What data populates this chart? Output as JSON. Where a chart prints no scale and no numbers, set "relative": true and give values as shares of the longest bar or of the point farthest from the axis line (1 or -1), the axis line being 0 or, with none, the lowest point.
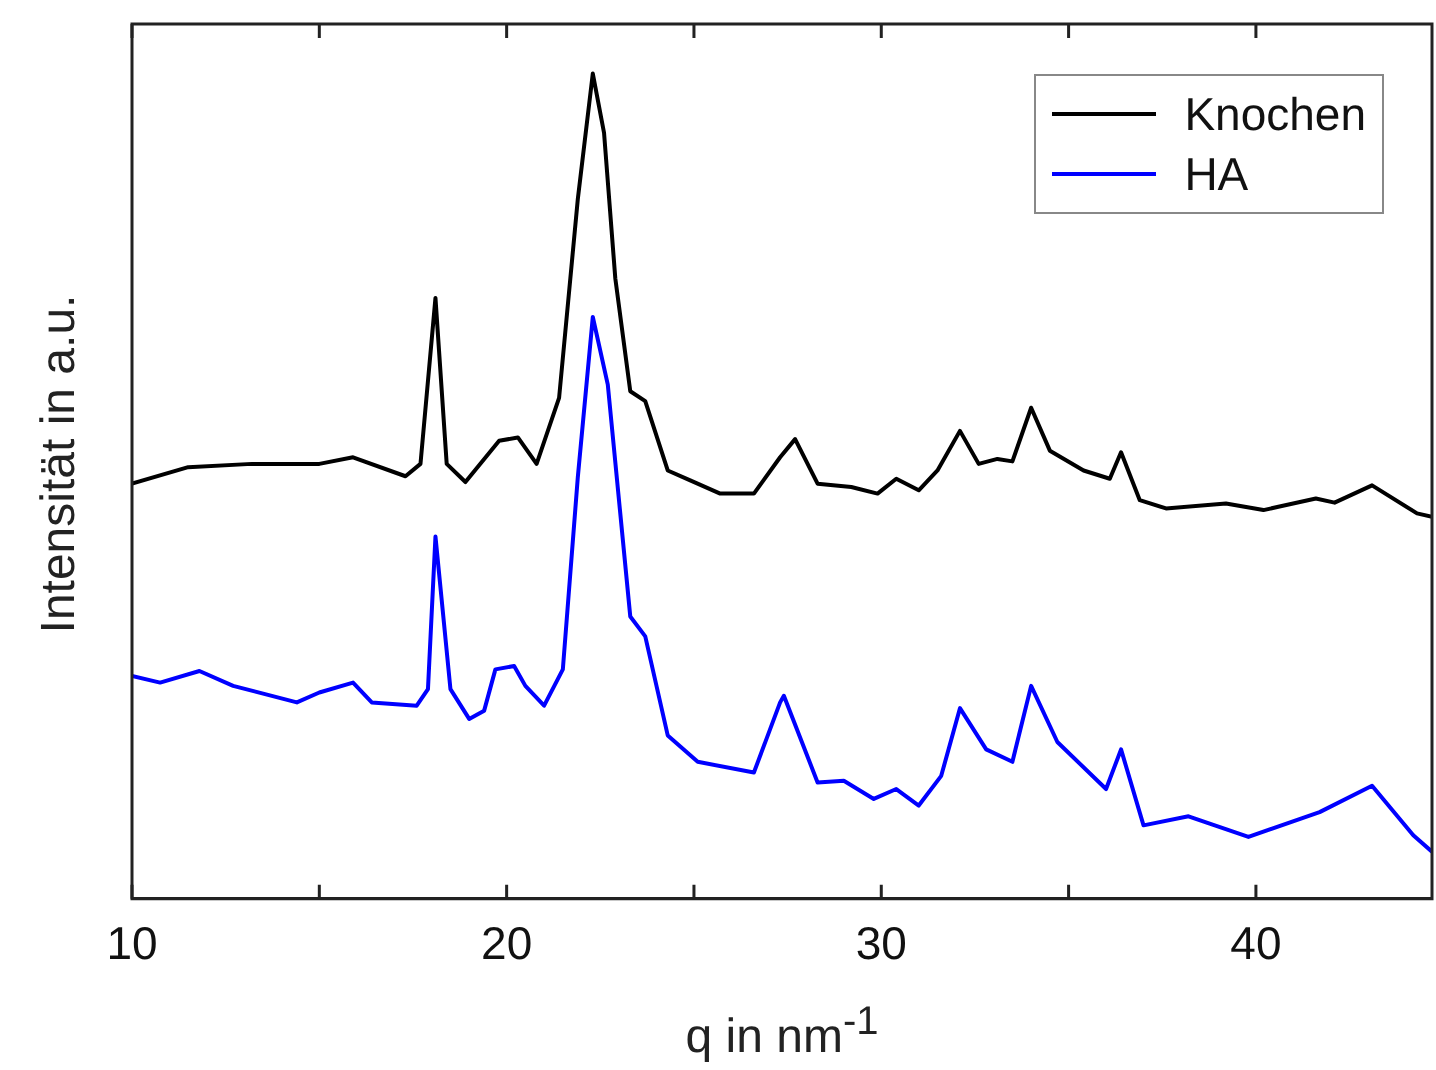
{
  "chart_data": {
    "type": "line",
    "relative": true,
    "xlabel": "q in nm$^{-1}$",
    "ylabel": "Intensität in a.u.",
    "xlim": [
      10,
      44.7
    ],
    "xticks": [
      10,
      {
        "value": 15,
        "label": null
      },
      20,
      {
        "value": 25,
        "label": null
      },
      30,
      {
        "value": 35,
        "label": null
      },
      40
    ],
    "legend": "top right",
    "grid": false,
    "marker": "none",
    "line_style": "solid",
    "series": [
      {
        "name": "Knochen",
        "color": "#000000",
        "x": [
          10.0,
          11.5,
          13.2,
          15.0,
          15.9,
          17.3,
          17.7,
          18.1,
          18.4,
          18.9,
          19.8,
          20.3,
          20.8,
          21.4,
          21.9,
          22.3,
          22.6,
          22.9,
          23.3,
          23.7,
          24.3,
          24.9,
          25.7,
          26.6,
          27.3,
          27.7,
          28.3,
          29.2,
          29.9,
          30.4,
          31.0,
          31.5,
          32.1,
          32.6,
          33.1,
          33.5,
          34.0,
          34.5,
          35.4,
          36.1,
          36.4,
          36.9,
          37.6,
          39.2,
          40.2,
          41.6,
          42.1,
          43.1,
          44.3,
          44.7
        ],
        "values": [
          0.503,
          0.523,
          0.527,
          0.527,
          0.535,
          0.512,
          0.527,
          0.728,
          0.527,
          0.505,
          0.555,
          0.559,
          0.527,
          0.607,
          0.848,
          1.0,
          0.928,
          0.752,
          0.615,
          0.603,
          0.519,
          0.507,
          0.491,
          0.491,
          0.535,
          0.557,
          0.503,
          0.499,
          0.491,
          0.509,
          0.495,
          0.519,
          0.567,
          0.527,
          0.533,
          0.53,
          0.595,
          0.543,
          0.519,
          0.509,
          0.541,
          0.483,
          0.473,
          0.479,
          0.471,
          0.485,
          0.48,
          0.501,
          0.467,
          0.463
        ]
      },
      {
        "name": "HA",
        "color": "#0000ff",
        "x": [
          10.0,
          10.75,
          11.8,
          12.7,
          14.4,
          15.0,
          15.9,
          16.4,
          17.6,
          17.9,
          18.1,
          18.5,
          19.0,
          19.4,
          19.7,
          20.2,
          20.5,
          21.0,
          21.5,
          21.9,
          22.3,
          22.7,
          23.3,
          23.7,
          24.3,
          25.1,
          26.6,
          27.3,
          27.4,
          28.3,
          29.0,
          29.8,
          30.4,
          31.0,
          31.6,
          32.1,
          32.8,
          33.5,
          34.0,
          34.7,
          36.0,
          36.4,
          37.0,
          38.2,
          39.8,
          41.7,
          43.1,
          44.2,
          44.7
        ],
        "values": [
          0.27,
          0.262,
          0.276,
          0.258,
          0.238,
          0.25,
          0.262,
          0.238,
          0.234,
          0.254,
          0.439,
          0.254,
          0.218,
          0.228,
          0.278,
          0.282,
          0.258,
          0.234,
          0.278,
          0.511,
          0.705,
          0.623,
          0.342,
          0.318,
          0.198,
          0.166,
          0.153,
          0.238,
          0.246,
          0.141,
          0.143,
          0.121,
          0.133,
          0.113,
          0.149,
          0.231,
          0.181,
          0.166,
          0.258,
          0.19,
          0.133,
          0.181,
          0.089,
          0.1,
          0.075,
          0.105,
          0.137,
          0.077,
          0.057
        ]
      }
    ]
  }
}
